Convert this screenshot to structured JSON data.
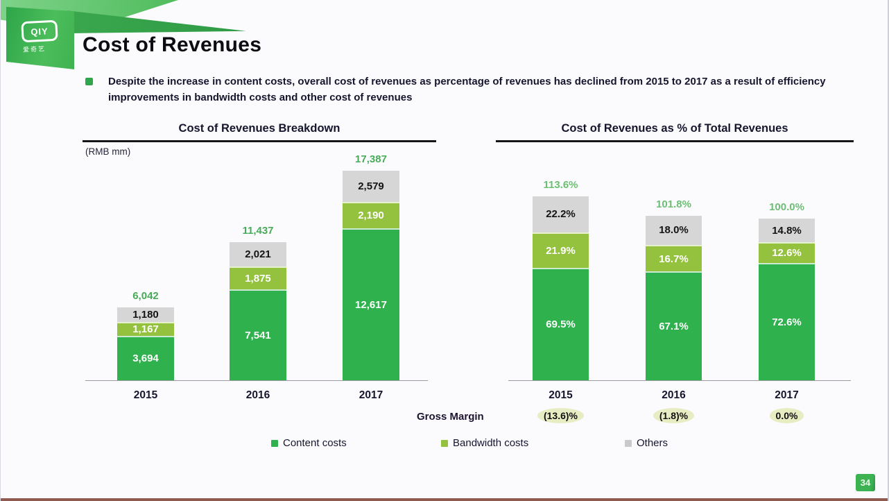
{
  "slide": {
    "title": "Cost of Revenues",
    "bullet_text": "Despite the increase in content costs, overall cost of revenues as percentage of revenues has declined from 2015 to 2017 as a result of efficiency improvements in bandwidth costs and other cost of revenues",
    "page_number": "34",
    "logo_text": "QIY",
    "logo_subtext": "爱奇艺"
  },
  "colors": {
    "content": "#2fb14e",
    "bandwidth": "#95c23e",
    "others": "#d6d6d6",
    "total_label_left": "#47ab58",
    "total_label_right": "#6dbe75"
  },
  "legend": [
    {
      "label": "Content costs",
      "color": "#2fb14e"
    },
    {
      "label": "Bandwidth costs",
      "color": "#95c23e"
    },
    {
      "label": "Others",
      "color": "#c9c9c9"
    }
  ],
  "gross_margin": {
    "label": "Gross Margin",
    "values": [
      {
        "year": "2015",
        "value": "(13.6)%"
      },
      {
        "year": "2016",
        "value": "(1.8)%"
      },
      {
        "year": "2017",
        "value": "0.0%"
      }
    ]
  },
  "chart_data": [
    {
      "type": "bar",
      "stacked": true,
      "title": "Cost of Revenues Breakdown",
      "unit_label": "(RMB mm)",
      "categories": [
        "2015",
        "2016",
        "2017"
      ],
      "series": [
        {
          "name": "Content costs",
          "values": [
            3694,
            7541,
            12617
          ],
          "labels": [
            "3,694",
            "7,541",
            "12,617"
          ],
          "color": "#2fb14e",
          "label_color": "#ffffff"
        },
        {
          "name": "Bandwidth costs",
          "values": [
            1167,
            1875,
            2190
          ],
          "labels": [
            "1,167",
            "1,875",
            "2,190"
          ],
          "color": "#95c23e",
          "label_color": "#ffffff"
        },
        {
          "name": "Others",
          "values": [
            1180,
            2021,
            2579
          ],
          "labels": [
            "1,180",
            "2,021",
            "2,579"
          ],
          "color": "#d6d6d6",
          "label_color": "#141414"
        }
      ],
      "totals": [
        6042,
        11437,
        17387
      ],
      "total_labels": [
        "6,042",
        "11,437",
        "17,387"
      ],
      "total_label_color": "#47ab58",
      "ylim": [
        0,
        17387
      ],
      "grid": false,
      "legend_position": "bottom"
    },
    {
      "type": "bar",
      "stacked": true,
      "title": "Cost of Revenues as % of Total Revenues",
      "unit_label": "",
      "categories": [
        "2015",
        "2016",
        "2017"
      ],
      "series": [
        {
          "name": "Content costs",
          "values": [
            69.5,
            67.1,
            72.6
          ],
          "labels": [
            "69.5%",
            "67.1%",
            "72.6%"
          ],
          "color": "#2fb14e",
          "label_color": "#ffffff"
        },
        {
          "name": "Bandwidth costs",
          "values": [
            21.9,
            16.7,
            12.6
          ],
          "labels": [
            "21.9%",
            "16.7%",
            "12.6%"
          ],
          "color": "#95c23e",
          "label_color": "#ffffff"
        },
        {
          "name": "Others",
          "values": [
            22.2,
            18.0,
            14.8
          ],
          "labels": [
            "22.2%",
            "18.0%",
            "14.8%"
          ],
          "color": "#d6d6d6",
          "label_color": "#141414"
        }
      ],
      "totals": [
        113.6,
        101.8,
        100.0
      ],
      "total_labels": [
        "113.6%",
        "101.8%",
        "100.0%"
      ],
      "total_label_color": "#6dbe75",
      "ylim": [
        0,
        113.6
      ],
      "grid": false,
      "legend_position": "bottom"
    }
  ]
}
